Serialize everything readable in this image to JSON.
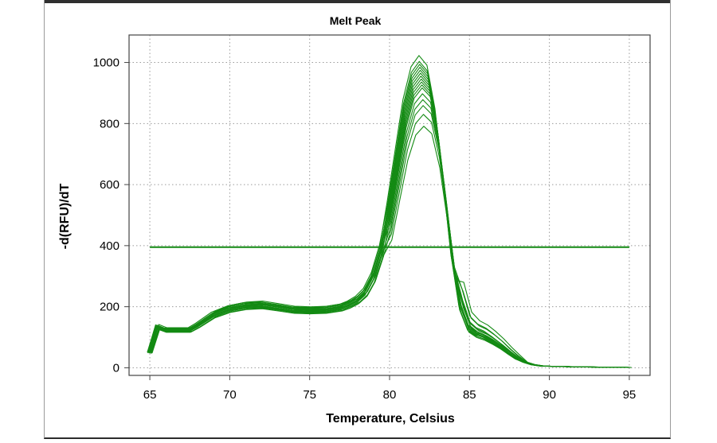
{
  "chart_data": {
    "type": "line",
    "title": "Melt Peak",
    "xlabel": "Temperature, Celsius",
    "ylabel": "-d(RFU)/dT",
    "xlim": [
      63.7,
      96.3
    ],
    "ylim": [
      -25,
      1090
    ],
    "x_ticks": [
      "65",
      "70",
      "75",
      "80",
      "85",
      "90",
      "95"
    ],
    "y_ticks": [
      "0",
      "200",
      "400",
      "600",
      "800",
      "1000"
    ],
    "grid": true,
    "series_color": "#138a13",
    "threshold": {
      "y": 395,
      "x_range": [
        65,
        95
      ]
    },
    "base_x": [
      65.0,
      65.5,
      66.0,
      66.5,
      67.0,
      67.5,
      68.0,
      69.0,
      70.0,
      71.0,
      72.0,
      73.0,
      74.0,
      75.0,
      76.0,
      77.0,
      77.5,
      78.0,
      78.5,
      79.0,
      79.5,
      80.0,
      80.5,
      81.0,
      81.5,
      82.0,
      82.5,
      83.0,
      83.5,
      84.0,
      84.5,
      85.0,
      85.5,
      86.0,
      86.5,
      87.0,
      87.5,
      88.0,
      88.5,
      89.0,
      89.5,
      90.0,
      91.0,
      92.0,
      93.0,
      94.0,
      95.0
    ],
    "base_y": [
      50,
      135,
      125,
      125,
      125,
      125,
      140,
      175,
      195,
      205,
      208,
      200,
      192,
      190,
      192,
      200,
      210,
      225,
      250,
      300,
      385,
      510,
      670,
      830,
      930,
      965,
      935,
      800,
      580,
      350,
      200,
      130,
      110,
      100,
      85,
      68,
      48,
      30,
      18,
      10,
      6,
      5,
      4,
      3,
      2,
      2,
      1
    ],
    "series_scales": [
      {
        "peak": 1.06,
        "base": 1.0,
        "shoulder": 1.0
      },
      {
        "peak": 1.04,
        "base": 1.04,
        "shoulder": 1.1
      },
      {
        "peak": 1.03,
        "base": 0.96,
        "shoulder": 0.95
      },
      {
        "peak": 1.02,
        "base": 1.02,
        "shoulder": 1.2
      },
      {
        "peak": 1.01,
        "base": 0.98,
        "shoulder": 1.0
      },
      {
        "peak": 1.0,
        "base": 1.0,
        "shoulder": 1.05
      },
      {
        "peak": 0.99,
        "base": 0.95,
        "shoulder": 0.9
      },
      {
        "peak": 0.98,
        "base": 1.03,
        "shoulder": 1.15
      },
      {
        "peak": 0.97,
        "base": 0.97,
        "shoulder": 1.0
      },
      {
        "peak": 0.96,
        "base": 1.01,
        "shoulder": 1.3
      },
      {
        "peak": 0.95,
        "base": 0.93,
        "shoulder": 0.92
      },
      {
        "peak": 0.93,
        "base": 1.05,
        "shoulder": 1.05
      },
      {
        "peak": 0.91,
        "base": 0.99,
        "shoulder": 1.1
      },
      {
        "peak": 0.89,
        "base": 0.94,
        "shoulder": 1.25
      },
      {
        "peak": 0.86,
        "base": 1.0,
        "shoulder": 0.98
      },
      {
        "peak": 0.82,
        "base": 0.96,
        "shoulder": 1.4
      }
    ]
  }
}
